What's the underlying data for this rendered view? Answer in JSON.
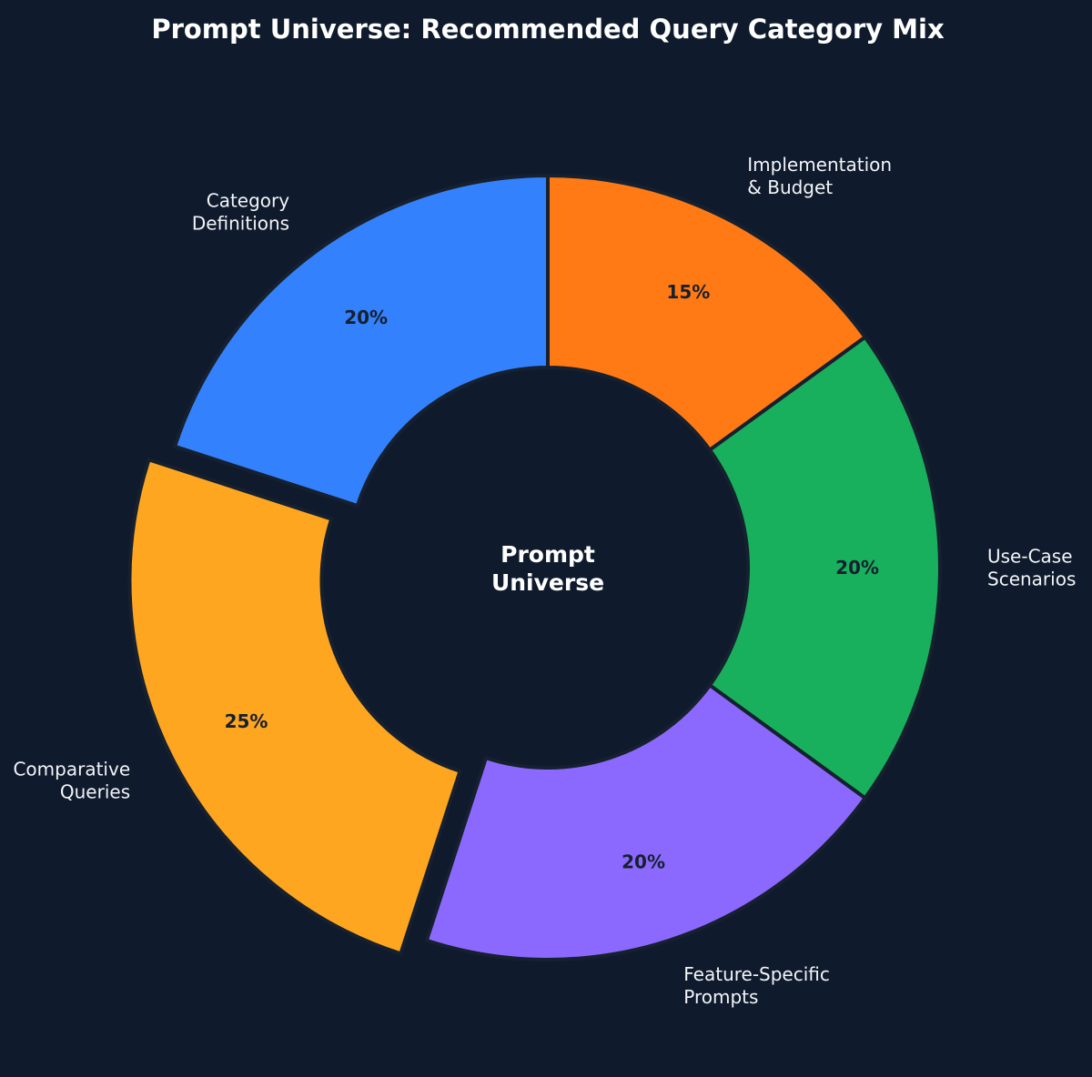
{
  "chart_data": {
    "type": "pie",
    "variant": "donut",
    "title": "Prompt Universe: Recommended Query Category Mix",
    "center_text": [
      "Prompt",
      "Universe"
    ],
    "start": "top",
    "direction": "clockwise",
    "legend": "none",
    "background": "#0f1b2d",
    "slices": [
      {
        "label": [
          "Implementation",
          "& Budget"
        ],
        "value": 15,
        "value_label": "15%",
        "color": "#ff7a14",
        "exploded": false
      },
      {
        "label": [
          "Use-Case",
          "Scenarios"
        ],
        "value": 20,
        "value_label": "20%",
        "color": "#18b05c",
        "exploded": false
      },
      {
        "label": [
          "Feature-Specific",
          "Prompts"
        ],
        "value": 20,
        "value_label": "20%",
        "color": "#8b69ff",
        "exploded": false
      },
      {
        "label": [
          "Comparative",
          "Queries"
        ],
        "value": 25,
        "value_label": "25%",
        "color": "#ffa620",
        "exploded": true
      },
      {
        "label": [
          "Category",
          "Definitions"
        ],
        "value": 20,
        "value_label": "20%",
        "color": "#3381fc",
        "exploded": false
      }
    ]
  }
}
